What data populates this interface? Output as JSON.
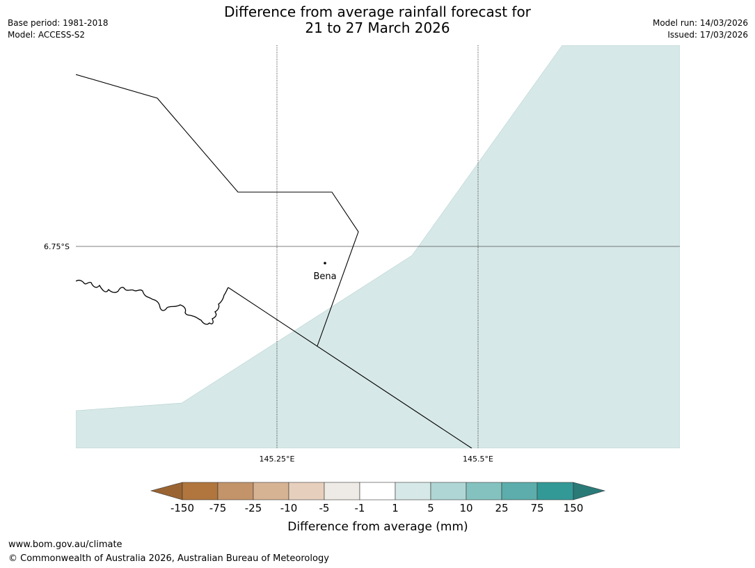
{
  "title": {
    "line1": "Difference from average rainfall forecast for",
    "line2": "21 to 27 March 2026"
  },
  "info": {
    "base_period": "Base period: 1981-2018",
    "model": "Model: ACCESS-S2",
    "model_run": "Model run: 14/03/2026",
    "issued": "Issued: 17/03/2026"
  },
  "map": {
    "lat_label": "6.75°S",
    "lon_labels": [
      "145.25°E",
      "145.5°E"
    ],
    "place_name": "Bena",
    "shaded_category": "1 to 5"
  },
  "legend": {
    "tick_labels": [
      "-150",
      "-75",
      "-25",
      "-10",
      "-5",
      "-1",
      "1",
      "5",
      "10",
      "25",
      "75",
      "150"
    ],
    "colors": [
      "#9a6432",
      "#b0763d",
      "#c39469",
      "#d6b393",
      "#e6d0bd",
      "#eeeae6",
      "#ffffff",
      "#d6e8e7",
      "#afd6d5",
      "#84c2bf",
      "#5cadab",
      "#339997",
      "#2a7a78"
    ],
    "label": "Difference from average (mm)"
  },
  "footer": {
    "url": "www.bom.gov.au/climate",
    "copyright": "© Commonwealth of Australia 2026, Australian Bureau of Meteorology"
  }
}
